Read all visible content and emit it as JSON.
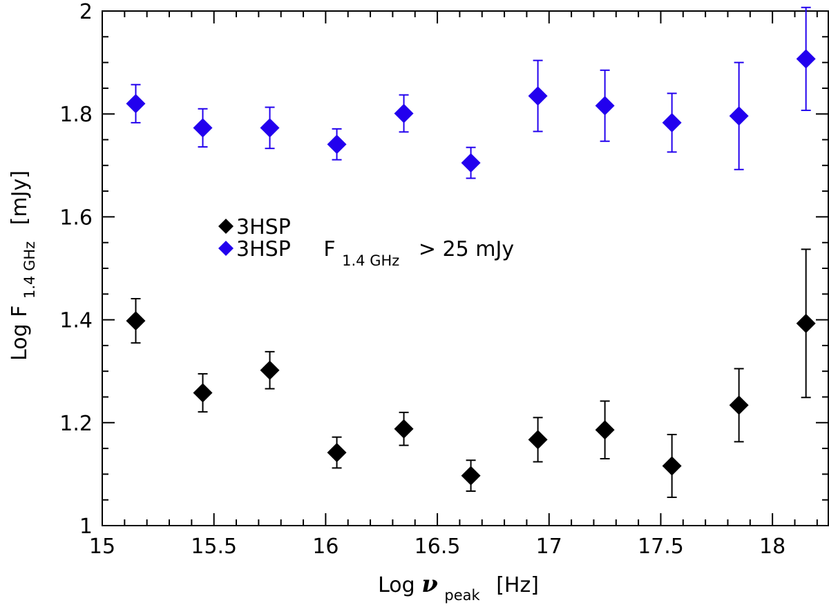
{
  "chart_data": {
    "type": "scatter",
    "xlabel": {
      "main": "Log ",
      "symbol": "ν",
      "sub": "peak",
      "unit": "[Hz]"
    },
    "ylabel": {
      "main": "Log F",
      "sub": "1.4 GHz",
      "unit": "[mJy]"
    },
    "xlim": [
      15,
      18.25
    ],
    "ylim": [
      1,
      2
    ],
    "xticks": [
      15,
      15.5,
      16,
      16.5,
      17,
      17.5,
      18
    ],
    "xtick_labels": [
      "15",
      "15.5",
      "16",
      "16.5",
      "17",
      "17.5",
      "18"
    ],
    "yticks": [
      1,
      1.2,
      1.4,
      1.6,
      1.8,
      2
    ],
    "ytick_labels": [
      "1",
      "1.2",
      "1.4",
      "1.6",
      "1.8",
      "2"
    ],
    "legend": {
      "placement": "center-left",
      "entries": [
        {
          "label": "3HSP",
          "color": "#000000"
        },
        {
          "label": "3HSP",
          "color": "#2200ee",
          "condition": {
            "main": "F",
            "sub": "1.4 GHz",
            "rest": ">  25 mJy"
          }
        }
      ]
    },
    "series": [
      {
        "name": "3HSP",
        "color": "#000000",
        "marker": "diamond",
        "x": [
          15.15,
          15.45,
          15.75,
          16.05,
          16.35,
          16.65,
          16.95,
          17.25,
          17.55,
          17.85,
          18.15
        ],
        "y": [
          1.398,
          1.258,
          1.302,
          1.142,
          1.188,
          1.097,
          1.167,
          1.186,
          1.116,
          1.234,
          1.393
        ],
        "err": [
          0.043,
          0.037,
          0.036,
          0.03,
          0.032,
          0.03,
          0.043,
          0.056,
          0.061,
          0.071,
          0.144
        ]
      },
      {
        "name": "3HSP F1.4 GHz > 25 mJy",
        "color": "#2200ee",
        "marker": "diamond",
        "x": [
          15.15,
          15.45,
          15.75,
          16.05,
          16.35,
          16.65,
          16.95,
          17.25,
          17.55,
          17.85,
          18.15
        ],
        "y": [
          1.82,
          1.773,
          1.773,
          1.741,
          1.801,
          1.705,
          1.835,
          1.816,
          1.783,
          1.796,
          1.907
        ],
        "err": [
          0.037,
          0.037,
          0.04,
          0.03,
          0.036,
          0.03,
          0.069,
          0.069,
          0.057,
          0.104,
          0.1
        ]
      }
    ]
  }
}
